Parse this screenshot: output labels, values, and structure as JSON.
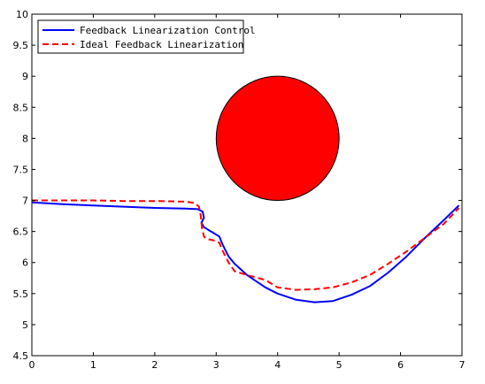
{
  "chart_data": {
    "type": "line",
    "title": "",
    "xlabel": "",
    "ylabel": "",
    "xlim": [
      0,
      7
    ],
    "ylim": [
      4.5,
      10
    ],
    "xticks": [
      0,
      1,
      2,
      3,
      4,
      5,
      6,
      7
    ],
    "yticks": [
      4.5,
      5,
      5.5,
      6,
      6.5,
      7,
      7.5,
      8,
      8.5,
      9,
      9.5,
      10
    ],
    "grid": false,
    "legend": "top-left",
    "series": [
      {
        "name": "Feedback Linearization Control",
        "color": "#0000ff",
        "style": "solid",
        "x": [
          0,
          0.5,
          1.0,
          1.5,
          2.0,
          2.5,
          2.7,
          2.78,
          2.8,
          2.76,
          2.8,
          2.88,
          2.95,
          3.05,
          3.1,
          3.2,
          3.3,
          3.5,
          3.8,
          4.0,
          4.3,
          4.6,
          4.9,
          5.2,
          5.5,
          5.8,
          6.1,
          6.4,
          6.7,
          6.95
        ],
        "y": [
          6.97,
          6.94,
          6.92,
          6.9,
          6.88,
          6.87,
          6.86,
          6.82,
          6.72,
          6.64,
          6.57,
          6.52,
          6.48,
          6.42,
          6.3,
          6.1,
          5.98,
          5.8,
          5.6,
          5.5,
          5.4,
          5.36,
          5.38,
          5.48,
          5.62,
          5.84,
          6.1,
          6.4,
          6.68,
          6.92
        ]
      },
      {
        "name": "Ideal Feedback Linearization",
        "color": "#ff0000",
        "style": "dashed",
        "x": [
          0,
          0.5,
          1.0,
          1.5,
          2.0,
          2.5,
          2.65,
          2.72,
          2.75,
          2.77,
          2.8,
          2.85,
          2.95,
          3.05,
          3.1,
          3.2,
          3.3,
          3.5,
          3.8,
          4.0,
          4.3,
          4.6,
          4.9,
          5.2,
          5.5,
          5.8,
          6.1,
          6.4,
          6.7,
          6.95
        ],
        "y": [
          7.0,
          7.0,
          7.0,
          6.99,
          6.99,
          6.98,
          6.96,
          6.9,
          6.75,
          6.55,
          6.42,
          6.38,
          6.36,
          6.32,
          6.2,
          6.0,
          5.86,
          5.8,
          5.72,
          5.6,
          5.56,
          5.57,
          5.6,
          5.68,
          5.8,
          5.98,
          6.18,
          6.4,
          6.62,
          6.88
        ]
      }
    ],
    "obstacle": {
      "shape": "circle",
      "cx": 4,
      "cy": 8,
      "r": 1,
      "color": "#ff0000"
    }
  }
}
